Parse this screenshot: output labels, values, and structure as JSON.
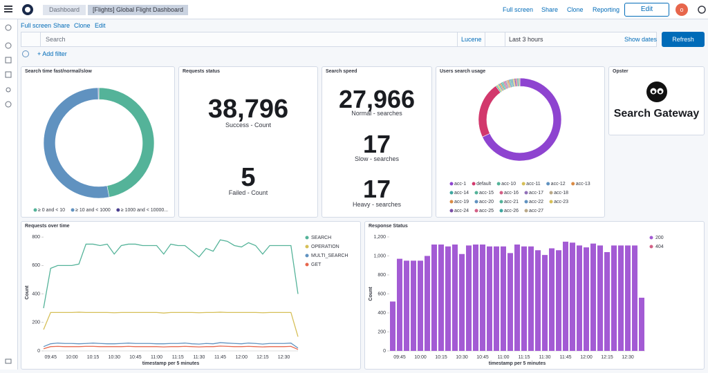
{
  "header": {
    "breadcrumbs": [
      "Dashboard",
      "[Flights] Global Flight Dashboard"
    ],
    "links": [
      "Full screen",
      "Share",
      "Clone",
      "Reporting"
    ],
    "edit": "Edit",
    "avatar": "o"
  },
  "toolbar": {
    "links": [
      "Full screen",
      "Share",
      "Clone",
      "Edit"
    ]
  },
  "query": {
    "placeholder": "Search",
    "language": "Lucene",
    "time": "Last 3 hours",
    "show_dates": "Show dates",
    "refresh": "Refresh"
  },
  "filter": {
    "add": "+ Add filter"
  },
  "panels": {
    "requests_status": {
      "title": "Requests status",
      "metrics": [
        {
          "value": "38,796",
          "label": "Success - Count"
        },
        {
          "value": "5",
          "label": "Failed - Count"
        }
      ]
    },
    "search_speed": {
      "title": "Search speed",
      "metrics": [
        {
          "value": "27,966",
          "label": "Normal - searches"
        },
        {
          "value": "17",
          "label": "Slow - searches"
        },
        {
          "value": "17",
          "label": "Heavy - searches"
        }
      ]
    },
    "opster": {
      "title": "Opster",
      "text": "Search Gateway"
    }
  },
  "chart_data": [
    {
      "type": "pie",
      "donut": true,
      "title": "Search time fast/normal/slow",
      "categories": [
        "≥ 0 and < 10",
        "≥ 10 and < 1000",
        "≥ 1000 and < 10000..."
      ],
      "values": [
        47,
        52.8,
        0.2
      ],
      "colors": [
        "#54b399",
        "#6092c0",
        "#4a3f8f"
      ]
    },
    {
      "type": "pie",
      "donut": true,
      "title": "Users search usage",
      "categories": [
        "acc-1",
        "default",
        "acc-10",
        "acc-11",
        "acc-12",
        "acc-13",
        "acc-14",
        "acc-15",
        "acc-16",
        "acc-17",
        "acc-18",
        "acc-19",
        "acc-20",
        "acc-21",
        "acc-22",
        "acc-23",
        "acc-24",
        "acc-25",
        "acc-26",
        "acc-27"
      ],
      "values": [
        68,
        22,
        0.55,
        0.55,
        0.55,
        0.55,
        0.55,
        0.55,
        0.55,
        0.55,
        0.55,
        0.55,
        0.55,
        0.55,
        0.55,
        0.55,
        0.55,
        0.55,
        0.55,
        0.55
      ],
      "colors": [
        "#8e44d0",
        "#d2386c",
        "#54b399",
        "#d6bf57",
        "#6092c0",
        "#da8b45",
        "#3fa7a0",
        "#54b399",
        "#d36086",
        "#9170b8",
        "#b9a888",
        "#da8b45",
        "#6092c0",
        "#54b399",
        "#6092c0",
        "#d6bf57",
        "#7b4fa6",
        "#d36086",
        "#3fa7a0",
        "#b9a888"
      ]
    },
    {
      "type": "line",
      "title": "Requests over time",
      "x_label": "timestamp per 5 minutes",
      "y_label": "Count",
      "categories": [
        null,
        "09:45",
        null,
        null,
        "10:00",
        null,
        null,
        "10:15",
        null,
        null,
        "10:30",
        null,
        null,
        "10:45",
        null,
        null,
        "11:00",
        null,
        null,
        "11:15",
        null,
        null,
        "11:30",
        null,
        null,
        "11:45",
        null,
        null,
        "12:00",
        null,
        null,
        "12:15",
        null,
        null,
        "12:30",
        null,
        null
      ],
      "ylim": [
        0,
        820
      ],
      "yticks": [
        0,
        200,
        400,
        600,
        800
      ],
      "grid": false,
      "series": [
        {
          "name": "SEARCH",
          "color": "#54b399",
          "values": [
            300,
            580,
            600,
            600,
            600,
            610,
            750,
            750,
            740,
            750,
            680,
            740,
            750,
            750,
            740,
            740,
            740,
            680,
            750,
            740,
            740,
            700,
            660,
            720,
            700,
            780,
            770,
            740,
            730,
            760,
            740,
            680,
            740,
            740,
            740,
            740,
            400
          ]
        },
        {
          "name": "OPERATION",
          "color": "#d6bf57",
          "values": [
            150,
            270,
            270,
            270,
            270,
            272,
            270,
            270,
            270,
            270,
            268,
            270,
            270,
            270,
            270,
            270,
            270,
            266,
            270,
            270,
            270,
            270,
            268,
            270,
            270,
            272,
            270,
            270,
            270,
            270,
            270,
            268,
            270,
            270,
            270,
            270,
            100
          ]
        },
        {
          "name": "MULTI_SEARCH",
          "color": "#6092c0",
          "values": [
            30,
            50,
            55,
            52,
            52,
            50,
            52,
            55,
            52,
            50,
            50,
            52,
            55,
            52,
            52,
            52,
            50,
            50,
            52,
            52,
            55,
            50,
            48,
            52,
            50,
            58,
            55,
            52,
            50,
            55,
            52,
            48,
            52,
            52,
            52,
            55,
            20
          ]
        },
        {
          "name": "GET",
          "color": "#e7664c",
          "values": [
            15,
            30,
            32,
            30,
            30,
            30,
            32,
            32,
            30,
            30,
            30,
            30,
            32,
            30,
            30,
            30,
            30,
            28,
            30,
            30,
            32,
            30,
            28,
            30,
            30,
            34,
            32,
            30,
            30,
            32,
            30,
            28,
            30,
            30,
            30,
            32,
            10
          ]
        }
      ]
    },
    {
      "type": "bar",
      "stacked": true,
      "title": "Response Status",
      "x_label": "timestamp per 5 minutes",
      "y_label": "Count",
      "categories": [
        null,
        "09:45",
        null,
        null,
        "10:00",
        null,
        null,
        "10:15",
        null,
        null,
        "10:30",
        null,
        null,
        "10:45",
        null,
        null,
        "11:00",
        null,
        null,
        "11:15",
        null,
        null,
        "11:30",
        null,
        null,
        "11:45",
        null,
        null,
        "12:00",
        null,
        null,
        "12:15",
        null,
        null,
        "12:30",
        null,
        null
      ],
      "ylim": [
        0,
        1200
      ],
      "yticks": [
        0,
        200,
        400,
        600,
        800,
        {
          "value": 1000,
          "label": "1,000"
        },
        {
          "value": 1200,
          "label": "1,200"
        }
      ],
      "grid": false,
      "series": [
        {
          "name": "200",
          "color": "#a35bd4",
          "values": [
            520,
            970,
            950,
            950,
            950,
            1000,
            1120,
            1120,
            1100,
            1120,
            1020,
            1110,
            1120,
            1120,
            1100,
            1100,
            1100,
            1030,
            1120,
            1100,
            1100,
            1060,
            1010,
            1080,
            1060,
            1150,
            1140,
            1110,
            1090,
            1130,
            1110,
            1040,
            1110,
            1110,
            1110,
            1110,
            560
          ]
        },
        {
          "name": "404",
          "color": "#d36086",
          "values": [
            0,
            0,
            0,
            0,
            0,
            0,
            0,
            0,
            0,
            0,
            0,
            0,
            0,
            0,
            0,
            0,
            0,
            0,
            0,
            0,
            0,
            0,
            0,
            0,
            0,
            0,
            0,
            0,
            0,
            0,
            0,
            0,
            0,
            0,
            0,
            0,
            0
          ]
        }
      ]
    }
  ]
}
